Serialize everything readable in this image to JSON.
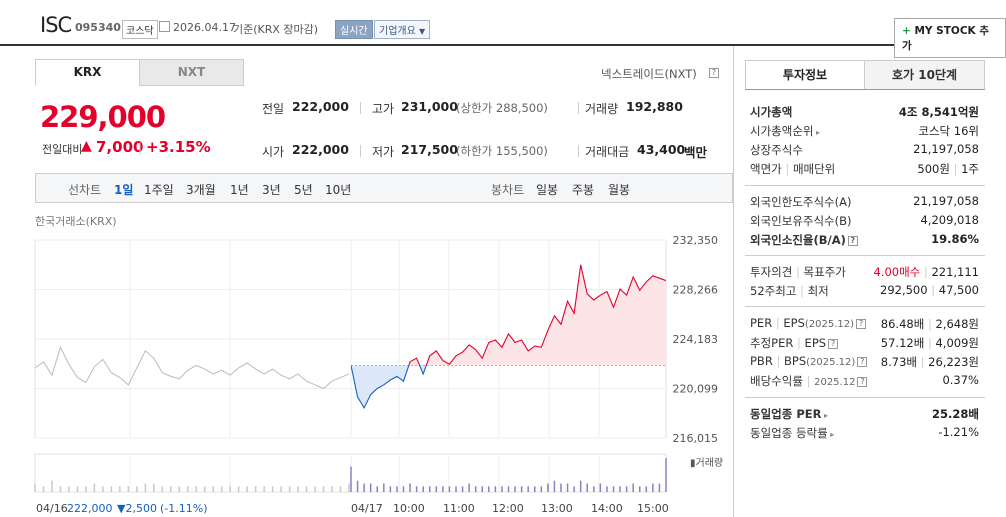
{
  "header": {
    "ticker": "ISC",
    "code": "095340",
    "market_tag": "코스닥",
    "date_text": "2026.04.17",
    "basis_text": "기준(KRX 장마감)",
    "live_tag": "실시간",
    "company_dropdown": "기업개요",
    "mystock_label": "MY STOCK 추가"
  },
  "tabs": {
    "krx": "KRX",
    "nxt": "NXT"
  },
  "nextrade_label": "넥스트레이드(NXT)",
  "price": {
    "current": "229,000",
    "change_label": "전일대비",
    "change_value": "7,000",
    "change_pct": "+3.15%"
  },
  "summary": {
    "prev_close_label": "전일",
    "prev_close": "222,000",
    "high_label": "고가",
    "high": "231,000",
    "upper_limit": "(상한가 288,500)",
    "volume_label": "거래량",
    "volume": "192,880",
    "open_label": "시가",
    "open": "222,000",
    "low_label": "저가",
    "low": "217,500",
    "lower_limit": "(하한가 155,500)",
    "amount_label": "거래대금",
    "amount": "43,400",
    "amount_unit": "백만"
  },
  "period": {
    "line_label": "선차트",
    "line_options": [
      "1일",
      "1주일",
      "3개월",
      "1년",
      "3년",
      "5년",
      "10년"
    ],
    "selected": "1일",
    "candle_label": "봉차트",
    "candle_options": [
      "일봉",
      "주봉",
      "월봉"
    ]
  },
  "chart_data": {
    "type": "line",
    "source_label": "한국거래소(KRX)",
    "y_ticks": [
      "232,350",
      "228,266",
      "224,183",
      "220,099",
      "216,015"
    ],
    "ylim": [
      216015,
      232350
    ],
    "prev_close_ref": 222000,
    "x_ticks": [
      "04/16",
      "04/17",
      "10:00",
      "11:00",
      "12:00",
      "13:00",
      "14:00",
      "15:00"
    ],
    "volume_label": "거래량",
    "prev_day_series": [
      221800,
      222300,
      221200,
      223500,
      222100,
      221000,
      220600,
      221900,
      222500,
      221400,
      221000,
      220400,
      221800,
      223200,
      222600,
      221400,
      221100,
      220900,
      221600,
      222000,
      221700,
      221300,
      221600,
      221200,
      221800,
      222200,
      221700,
      221300,
      221700,
      221200,
      220900,
      221300,
      220700,
      220400,
      220100,
      220700,
      221000,
      221300
    ],
    "today_series": [
      222000,
      219400,
      218500,
      219600,
      220100,
      220400,
      220800,
      221100,
      220700,
      222300,
      222600,
      221300,
      222800,
      223200,
      222400,
      222100,
      222800,
      223100,
      223700,
      223300,
      222600,
      223900,
      224100,
      223500,
      224600,
      223900,
      224100,
      223200,
      223600,
      223500,
      224900,
      226100,
      225400,
      227300,
      226300,
      230300,
      227900,
      227400,
      227800,
      228100,
      226800,
      228300,
      227800,
      229300,
      228200,
      228900,
      229400,
      229200,
      229000
    ],
    "today_volume": [
      9,
      4,
      3,
      3,
      2,
      3,
      2,
      2,
      2,
      3,
      2,
      2,
      2,
      2,
      2,
      2,
      2,
      2,
      3,
      2,
      2,
      2,
      2,
      2,
      2,
      2,
      2,
      2,
      2,
      2,
      3,
      4,
      3,
      3,
      2,
      4,
      3,
      2,
      3,
      2,
      2,
      2,
      2,
      3,
      2,
      2,
      3,
      3,
      12
    ],
    "prev_volume": [
      3,
      2,
      4,
      2,
      2,
      2,
      2,
      3,
      2,
      2,
      2,
      2,
      2,
      3,
      3,
      2,
      2,
      2,
      2,
      2,
      2,
      2,
      2,
      2,
      2,
      2,
      2,
      2,
      2,
      2,
      2,
      2,
      2,
      2,
      2,
      2,
      2,
      3
    ],
    "footer_prev_price": "222,000",
    "footer_change": "2,500",
    "footer_pct": "(-1.11%)",
    "colors": {
      "up": "#e3002b",
      "down": "#1261c4",
      "up_fill": "#fde4e7",
      "down_fill": "#dce8f8",
      "prev": "#bbbbbb"
    }
  },
  "right_tabs": {
    "invest": "투자정보",
    "quote": "호가 10단계"
  },
  "invest_info": {
    "market_cap_label": "시가총액",
    "market_cap": "4조 8,541억원",
    "market_cap_rank_label": "시가총액순위",
    "market_cap_rank": "코스닥 16위",
    "shares_label": "상장주식수",
    "shares": "21,197,058",
    "face_label_a": "액면가",
    "face_label_b": "매매단위",
    "face_value": "500원",
    "trade_unit": "1주",
    "foreign_limit_label": "외국인한도주식수(A)",
    "foreign_limit": "21,197,058",
    "foreign_hold_label": "외국인보유주식수(B)",
    "foreign_hold": "4,209,018",
    "foreign_ratio_label": "외국인소진율(B/A)",
    "foreign_ratio": "19.86%",
    "opinion_label_a": "투자의견",
    "opinion_label_b": "목표주가",
    "opinion": "4.00매수",
    "target_price": "221,111",
    "w52_label_a": "52주최고",
    "w52_label_b": "최저",
    "w52_high": "292,500",
    "w52_low": "47,500",
    "per_label_a": "PER",
    "per_label_b": "EPS",
    "per_year": "(2025.12)",
    "per": "86.48배",
    "eps": "2,648원",
    "est_per_label_a": "추정PER",
    "est_per_label_b": "EPS",
    "est_per": "57.12배",
    "est_eps": "4,009원",
    "pbr_label_a": "PBR",
    "pbr_label_b": "BPS",
    "pbr_year": "(2025.12)",
    "pbr": "8.73배",
    "bps": "26,223원",
    "div_label": "배당수익률",
    "div_year": "2025.12",
    "div_yield": "0.37%",
    "sector_per_label": "동일업종 PER",
    "sector_per": "25.28배",
    "sector_change_label": "동일업종 등락률",
    "sector_change": "-1.21%"
  }
}
